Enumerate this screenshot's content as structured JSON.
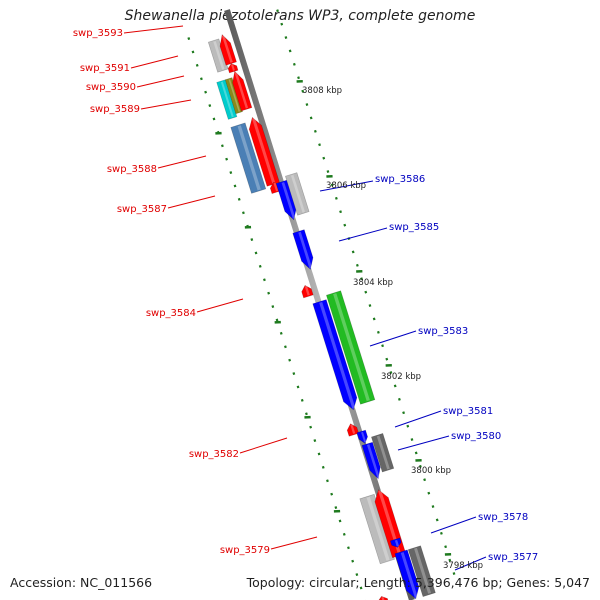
{
  "title": "Shewanella piezotolerans WP3, complete genome",
  "accession": "Accession: NC_011566",
  "topology": "Topology: circular; Length: 5,396,476 bp; Genes: 5,047",
  "colors": {
    "backbone": "#888888",
    "reverse_strand_label": "#e00000",
    "forward_strand_label": "#0000c0",
    "tick": "#1e7a1e",
    "gene_red": "#ff0000",
    "gene_blue": "#0000ff",
    "gene_green": "#22bb22",
    "gene_gray": "#bbbbbb",
    "gene_darkgray": "#666666",
    "gene_steelblue": "#4a7fb5",
    "gene_cyan": "#00cccc",
    "gene_olive": "#8a8a1a"
  },
  "kbp_labels": [
    "3808 kbp",
    "3806 kbp",
    "3804 kbp",
    "3802 kbp",
    "3800 kbp",
    "3798 kbp"
  ],
  "gene_labels": {
    "reverse": [
      "swp_3593",
      "swp_3591",
      "swp_3590",
      "swp_3589",
      "swp_3588",
      "swp_3587",
      "swp_3584",
      "swp_3582",
      "swp_3579"
    ],
    "forward": [
      "swp_3586",
      "swp_3585",
      "swp_3583",
      "swp_3581",
      "swp_3580",
      "swp_3578",
      "swp_3577"
    ]
  }
}
